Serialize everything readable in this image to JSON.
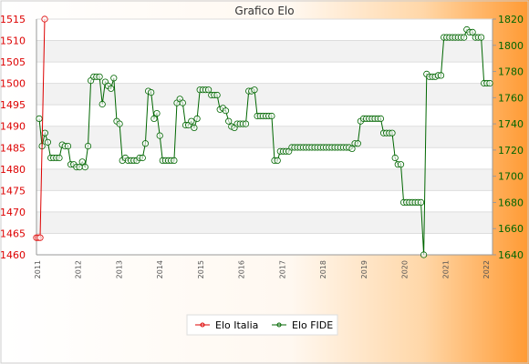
{
  "chart_data": {
    "type": "line",
    "title": "Grafico Elo",
    "y_left": {
      "min": 1460,
      "max": 1515,
      "step": 5,
      "ticks": [
        1460,
        1465,
        1470,
        1475,
        1480,
        1485,
        1490,
        1495,
        1500,
        1505,
        1510,
        1515
      ]
    },
    "y_right": {
      "min": 1640,
      "max": 1820,
      "step": 20,
      "ticks": [
        1640,
        1660,
        1680,
        1700,
        1720,
        1740,
        1760,
        1780,
        1800,
        1820
      ]
    },
    "x_tick_labels": [
      "2011",
      "2012",
      "2013",
      "2014",
      "2015",
      "2016",
      "2017",
      "2018",
      "2019",
      "2020",
      "2021",
      "2022"
    ],
    "legend": {
      "placement": "bottom-center"
    },
    "grid": true,
    "series": [
      {
        "name": "Elo Italia",
        "color": "#dd0000",
        "axis": "left",
        "values": [
          1464,
          1464,
          1464,
          1515
        ]
      },
      {
        "name": "Elo FIDE",
        "color": "#006600",
        "axis": "right",
        "values": [
          1744,
          1723,
          1733,
          1726,
          1714,
          1714,
          1714,
          1714,
          1724,
          1723,
          1723,
          1709,
          1709,
          1707,
          1707,
          1711,
          1707,
          1723,
          1773,
          1776,
          1776,
          1776,
          1755,
          1772,
          1769,
          1767,
          1775,
          1742,
          1740,
          1712,
          1714,
          1712,
          1712,
          1712,
          1712,
          1714,
          1714,
          1725,
          1765,
          1764,
          1744,
          1748,
          1731,
          1712,
          1712,
          1712,
          1712,
          1712,
          1756,
          1759,
          1756,
          1739,
          1739,
          1742,
          1737,
          1744,
          1766,
          1766,
          1766,
          1766,
          1762,
          1762,
          1762,
          1751,
          1752,
          1750,
          1742,
          1738,
          1737,
          1740,
          1740,
          1740,
          1740,
          1765,
          1765,
          1766,
          1746,
          1746,
          1746,
          1746,
          1746,
          1746,
          1712,
          1712,
          1719,
          1719,
          1719,
          1719,
          1722,
          1722,
          1722,
          1722,
          1722,
          1722,
          1722,
          1722,
          1722,
          1722,
          1722,
          1722,
          1722,
          1722,
          1722,
          1722,
          1722,
          1722,
          1722,
          1722,
          1722,
          1721,
          1725,
          1725,
          1742,
          1744,
          1744,
          1744,
          1744,
          1744,
          1744,
          1744,
          1733,
          1733,
          1733,
          1733,
          1714,
          1709,
          1709,
          1680,
          1680,
          1680,
          1680,
          1680,
          1680,
          1680,
          1640,
          1778,
          1776,
          1776,
          1776,
          1777,
          1777,
          1806,
          1806,
          1806,
          1806,
          1806,
          1806,
          1806,
          1806,
          1812,
          1810,
          1810,
          1806,
          1806,
          1806,
          1771,
          1771,
          1771
        ]
      }
    ]
  }
}
